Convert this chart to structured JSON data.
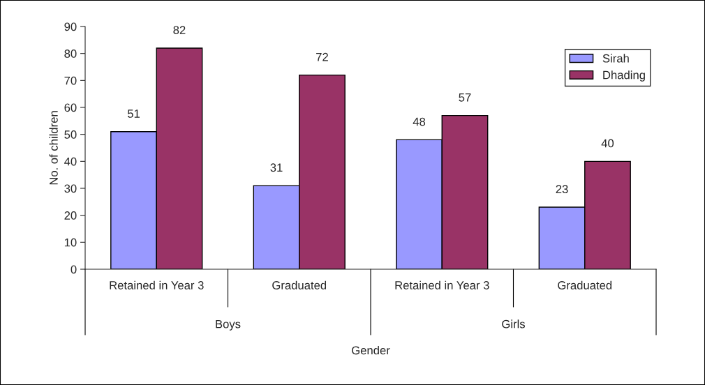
{
  "chart_data": {
    "type": "bar",
    "xlabel": "Gender",
    "ylabel": "No. of children",
    "categories": [
      "Retained in Year 3",
      "Graduated",
      "Retained in Year 3",
      "Graduated"
    ],
    "series": [
      {
        "name": "Sirah",
        "color": "#9999ff",
        "values": [
          51,
          31,
          48,
          23
        ]
      },
      {
        "name": "Dhading",
        "color": "#993366",
        "values": [
          82,
          72,
          57,
          40
        ]
      }
    ],
    "annotations": [
      "Boys",
      "Girls"
    ],
    "ylim": [
      0,
      90
    ],
    "yticks": [
      0,
      10,
      20,
      30,
      40,
      50,
      60,
      70,
      80,
      90
    ],
    "data_labels": true,
    "legend": "top right",
    "grid": false
  }
}
